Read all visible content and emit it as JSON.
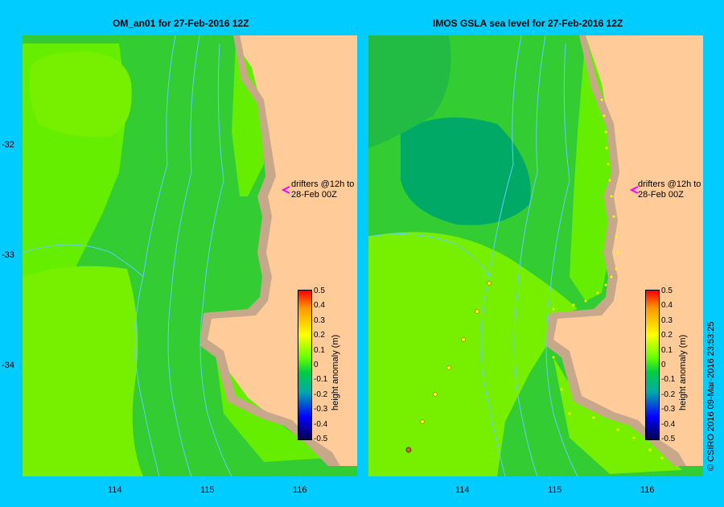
{
  "panels": [
    {
      "title": "OM_an01  for 27-Feb-2016 12Z",
      "drifter_note": [
        "drifters @12h to",
        "28-Feb 00Z"
      ]
    },
    {
      "title": "IMOS GSLA sea level  for 27-Feb-2016 12Z",
      "drifter_note": [
        "drifters @12h to",
        "28-Feb 00Z"
      ]
    }
  ],
  "axes": {
    "lat_labels": [
      "-32",
      "-33",
      "-34"
    ],
    "lon_labels": [
      "114",
      "115",
      "116"
    ]
  },
  "colorbar": {
    "label": "height anomaly (m)",
    "ticks": [
      "0.5",
      "0.4",
      "0.3",
      "0.2",
      "0.1",
      "0",
      "-0.1",
      "-0.2",
      "-0.3",
      "-0.4",
      "-0.5"
    ],
    "colors": [
      "#ff0000",
      "#ff9900",
      "#ffff00",
      "#66ff00",
      "#00cc44",
      "#00aaaa",
      "#0000ff",
      "#00004d"
    ]
  },
  "credit": "© CSIRO 2016   09-Mar-2016 23:53:25",
  "colors": {
    "background": "#00ccff",
    "land": "#ffcc99",
    "shelf": "#c8a88a",
    "contour_line": "#66ccff",
    "drifter_arrow": "#ff00ff"
  }
}
